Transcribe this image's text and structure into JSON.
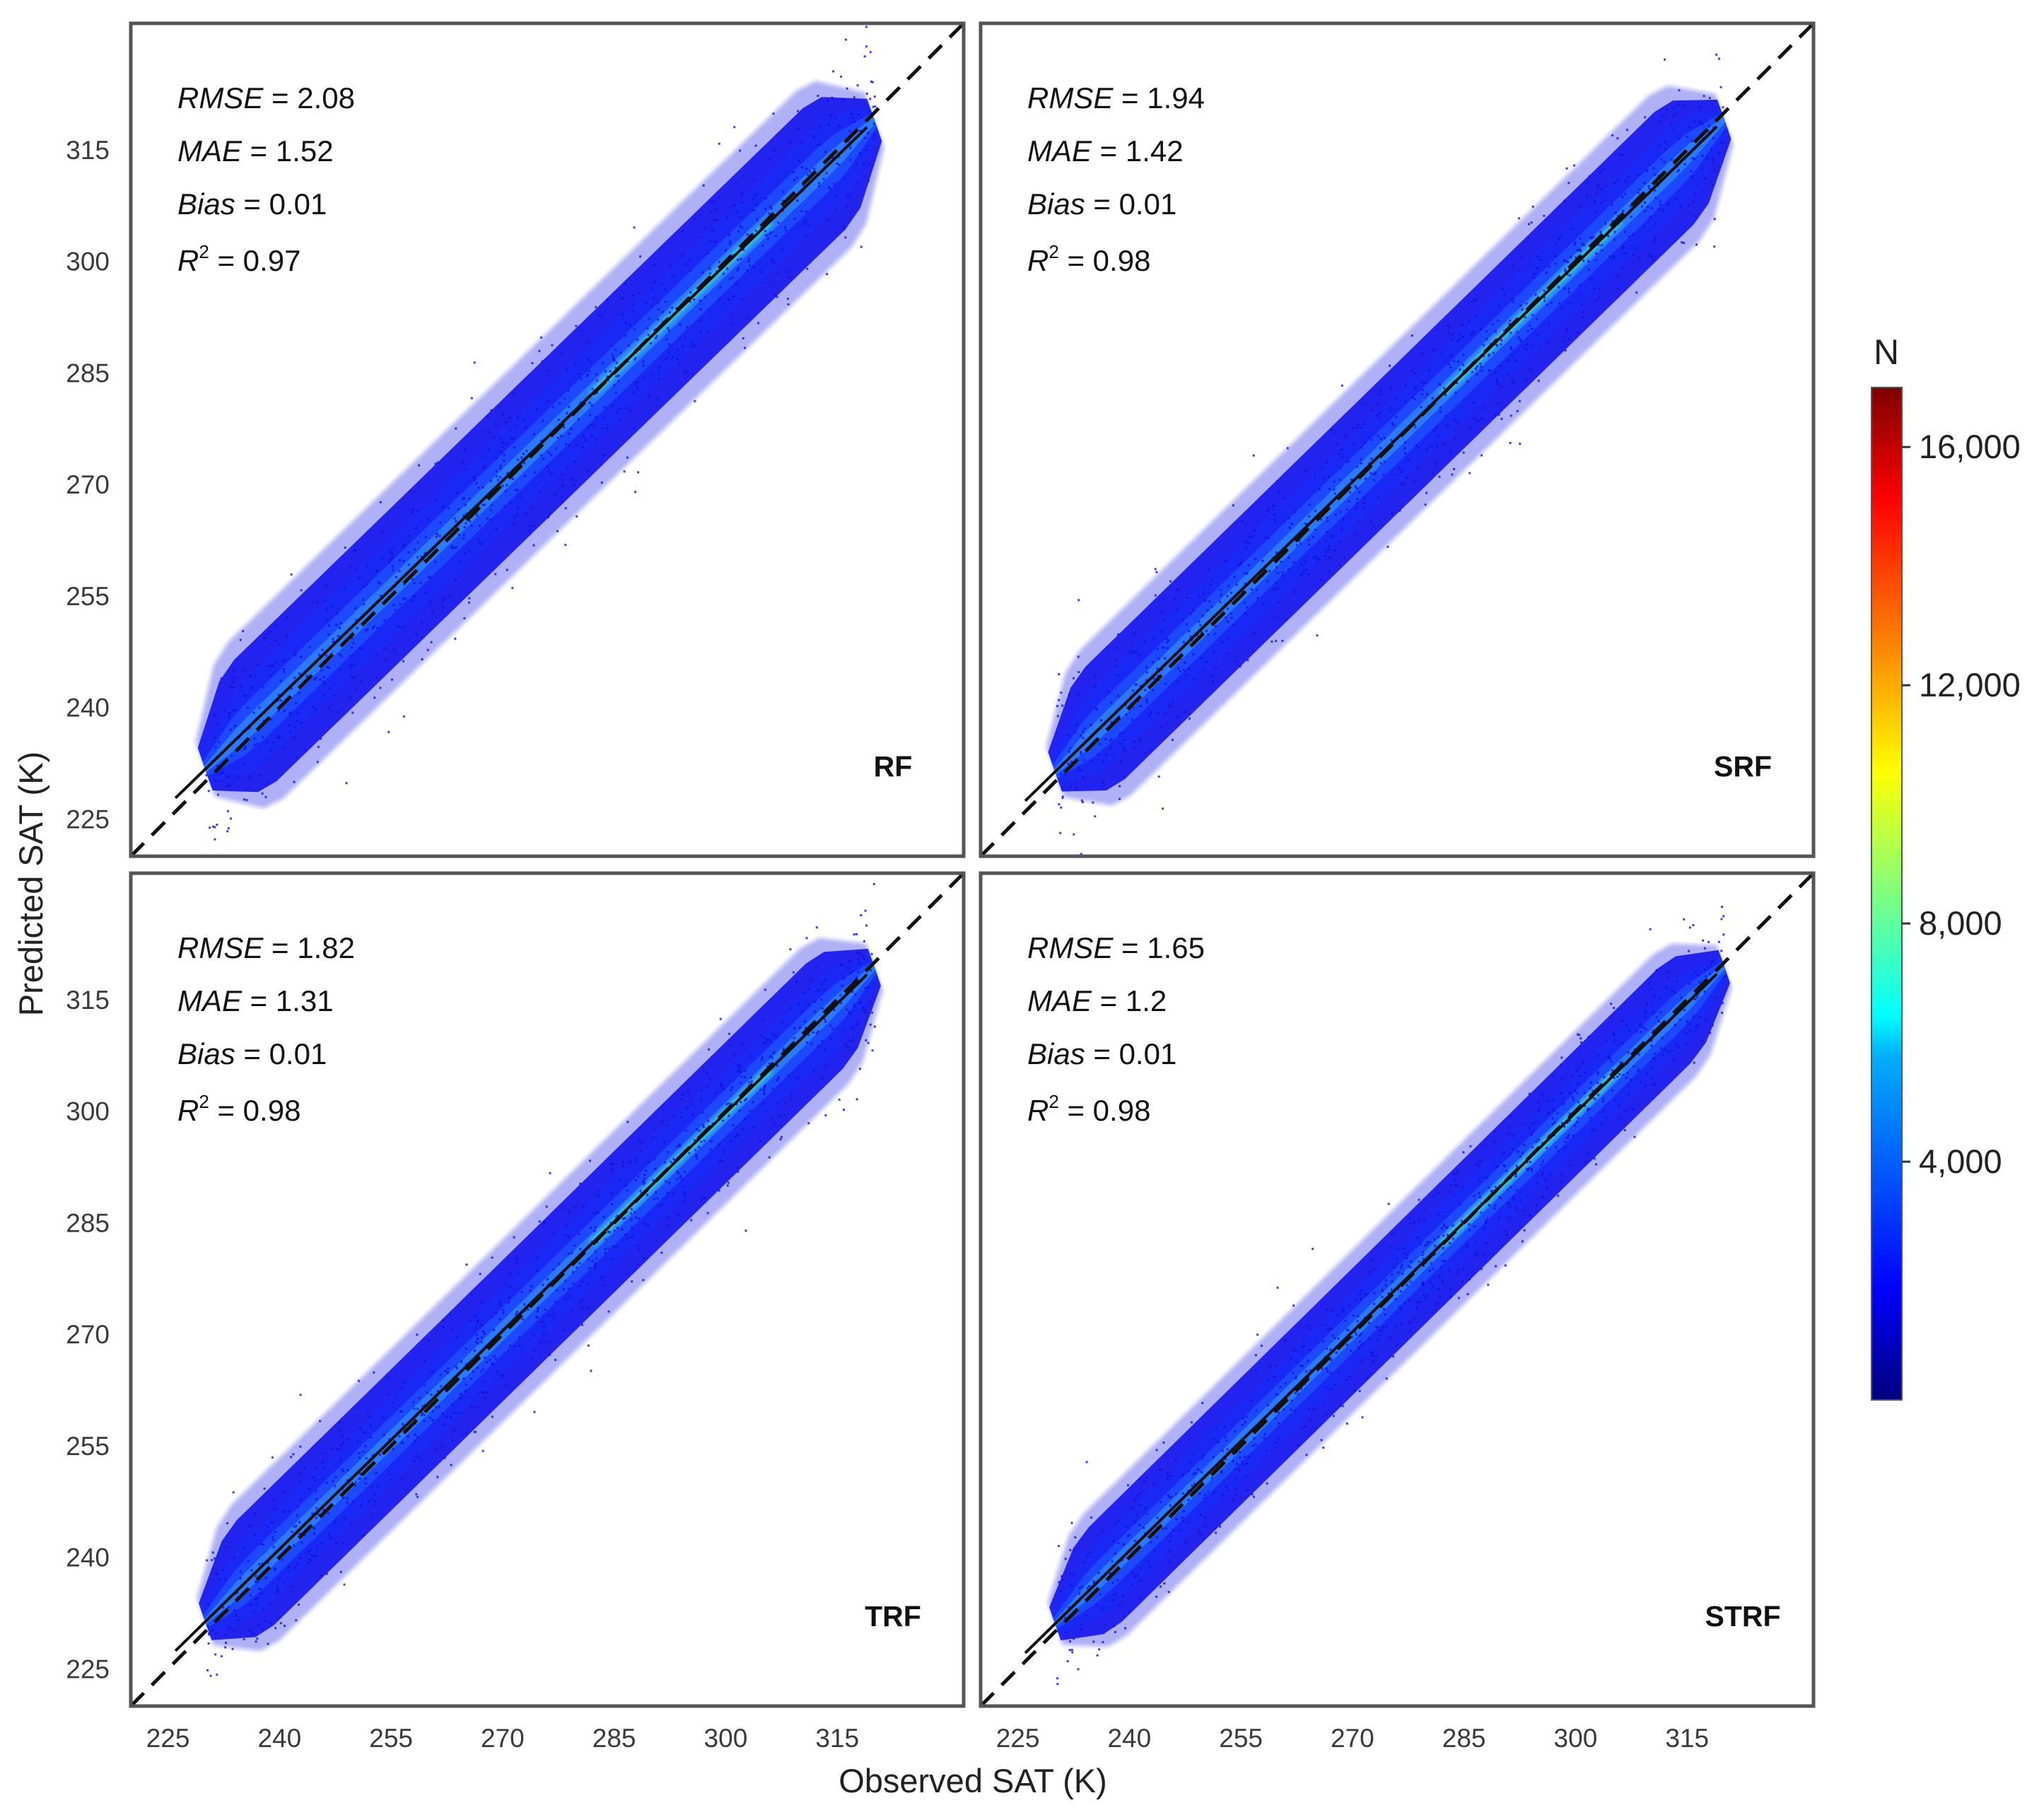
{
  "chart_data": {
    "type": "scatter",
    "density_colormap": "jet",
    "xlabel": "Observed SAT (K)",
    "ylabel": "Predicted SAT (K)",
    "xlim": [
      220,
      332
    ],
    "ylim": [
      220,
      332
    ],
    "x_ticks": [
      "225",
      "240",
      "255",
      "270",
      "285",
      "300",
      "315"
    ],
    "y_ticks": [
      "225",
      "240",
      "255",
      "270",
      "285",
      "300",
      "315"
    ],
    "x_tick_values": [
      225,
      240,
      255,
      270,
      285,
      300,
      315
    ],
    "y_tick_values": [
      225,
      240,
      255,
      270,
      285,
      300,
      315
    ],
    "data_range": [
      230,
      320
    ],
    "reference_line": {
      "style": "dashed",
      "slope": 1,
      "intercept": 0
    },
    "panels": [
      {
        "name": "RF",
        "stats": [
          {
            "label": "RMSE",
            "value": "2.08"
          },
          {
            "label": "MAE",
            "value": "1.52"
          },
          {
            "label": "Bias",
            "value": "0.01"
          },
          {
            "label": "R",
            "sup": "2",
            "value": "0.97"
          }
        ],
        "fit": {
          "slope": 0.97,
          "intercept": 8.6
        },
        "spread": 6.8
      },
      {
        "name": "SRF",
        "stats": [
          {
            "label": "RMSE",
            "value": "1.94"
          },
          {
            "label": "MAE",
            "value": "1.42"
          },
          {
            "label": "Bias",
            "value": "0.01"
          },
          {
            "label": "R",
            "sup": "2",
            "value": "0.98"
          }
        ],
        "fit": {
          "slope": 0.975,
          "intercept": 7.1
        },
        "spread": 6.3
      },
      {
        "name": "TRF",
        "stats": [
          {
            "label": "RMSE",
            "value": "1.82"
          },
          {
            "label": "MAE",
            "value": "1.31"
          },
          {
            "label": "Bias",
            "value": "0.01"
          },
          {
            "label": "R",
            "sup": "2",
            "value": "0.98"
          }
        ],
        "fit": {
          "slope": 0.978,
          "intercept": 6.4
        },
        "spread": 5.9
      },
      {
        "name": "STRF",
        "stats": [
          {
            "label": "RMSE",
            "value": "1.65"
          },
          {
            "label": "MAE",
            "value": "1.2"
          },
          {
            "label": "Bias",
            "value": "0.01"
          },
          {
            "label": "R",
            "sup": "2",
            "value": "0.98"
          }
        ],
        "fit": {
          "slope": 0.982,
          "intercept": 5.2
        },
        "spread": 5.3
      }
    ],
    "colorbar": {
      "title": "N",
      "min": 0,
      "max": 17000,
      "tick_labels": [
        "4,000",
        "8,000",
        "12,000",
        "16,000"
      ],
      "tick_values": [
        4000,
        8000,
        12000,
        16000
      ],
      "colors": [
        "#00007f",
        "#0000ff",
        "#007fff",
        "#00ffff",
        "#7fff7f",
        "#ffff00",
        "#ff7f00",
        "#ff0000",
        "#7f0000"
      ]
    }
  }
}
